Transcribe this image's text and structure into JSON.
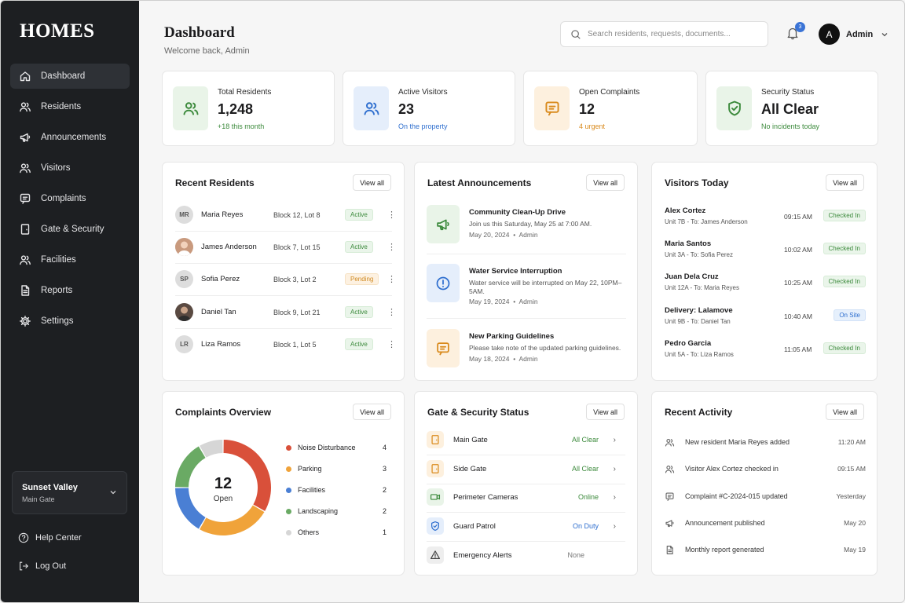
{
  "brand": "HOMES",
  "nav": [
    {
      "label": "Dashboard",
      "icon": "home-icon",
      "active": true
    },
    {
      "label": "Residents",
      "icon": "users-icon"
    },
    {
      "label": "Announcements",
      "icon": "megaphone-icon"
    },
    {
      "label": "Visitors",
      "icon": "users-icon"
    },
    {
      "label": "Complaints",
      "icon": "message-square-icon"
    },
    {
      "label": "Gate & Security",
      "icon": "door-icon"
    },
    {
      "label": "Facilities",
      "icon": "users-icon"
    },
    {
      "label": "Reports",
      "icon": "file-text-icon"
    },
    {
      "label": "Settings",
      "icon": "gear-icon"
    }
  ],
  "community": {
    "name": "Sunset Valley",
    "sub": "Main Gate"
  },
  "sidebar_footer": {
    "help": "Help Center",
    "logout": "Log Out"
  },
  "header": {
    "title": "Dashboard",
    "subtitle": "Welcome back, Admin",
    "search_placeholder": "Search residents, requests, documents...",
    "notifications": "3",
    "avatar_letter": "A",
    "user": "Admin"
  },
  "stats": [
    {
      "label": "Total Residents",
      "value": "1,248",
      "note": "+18 this month",
      "icon": "users-icon",
      "color": "#3c8a3c"
    },
    {
      "label": "Active Visitors",
      "value": "23",
      "note": "On the property",
      "icon": "users-icon",
      "color": "#2f6fcf"
    },
    {
      "label": "Open Complaints",
      "value": "12",
      "note": "4 urgent",
      "icon": "message-square-icon",
      "color": "#d98a1c"
    },
    {
      "label": "Security Status",
      "value": "All Clear",
      "note": "No incidents today",
      "icon": "shield-check-icon",
      "color": "#3c8a3c"
    }
  ],
  "view_all": "View all",
  "recent_residents": {
    "title": "Recent Residents",
    "rows": [
      {
        "initials": "MR",
        "name": "Maria Reyes",
        "block": "Block 12, Lot 8",
        "status": "Active"
      },
      {
        "initials": "",
        "name": "James Anderson",
        "block": "Block 7, Lot 15",
        "status": "Active"
      },
      {
        "initials": "SP",
        "name": "Sofia Perez",
        "block": "Block 3, Lot 2",
        "status": "Pending"
      },
      {
        "initials": "",
        "name": "Daniel Tan",
        "block": "Block 9, Lot 21",
        "status": "Active"
      },
      {
        "initials": "LR",
        "name": "Liza Ramos",
        "block": "Block 1, Lot 5",
        "status": "Active"
      }
    ]
  },
  "announcements": {
    "title": "Latest Announcements",
    "items": [
      {
        "title": "Community Clean-Up Drive",
        "desc": "Join us this Saturday, May 25 at 7:00 AM.",
        "date": "May 20, 2024",
        "by": "Admin",
        "icon": "megaphone-icon"
      },
      {
        "title": "Water Service Interruption",
        "desc": "Water service will be interrupted on May 22, 10PM–5AM.",
        "date": "May 19, 2024",
        "by": "Admin",
        "icon": "alert-circle-icon"
      },
      {
        "title": "New Parking Guidelines",
        "desc": "Please take note of the updated parking guidelines.",
        "date": "May 18, 2024",
        "by": "Admin",
        "icon": "message-square-icon"
      }
    ]
  },
  "visitors": {
    "title": "Visitors Today",
    "items": [
      {
        "name": "Alex Cortez",
        "unit": "Unit 7B - To: James Anderson",
        "time": "09:15 AM",
        "status": "Checked In"
      },
      {
        "name": "Maria Santos",
        "unit": "Unit 3A - To: Sofia Perez",
        "time": "10:02 AM",
        "status": "Checked In"
      },
      {
        "name": "Juan Dela Cruz",
        "unit": "Unit 12A - To: Maria Reyes",
        "time": "10:25 AM",
        "status": "Checked In"
      },
      {
        "name": "Delivery: Lalamove",
        "unit": "Unit 9B - To: Daniel Tan",
        "time": "10:40 AM",
        "status": "On Site"
      },
      {
        "name": "Pedro Garcia",
        "unit": "Unit 5A - To: Liza Ramos",
        "time": "11:05 AM",
        "status": "Checked In"
      }
    ]
  },
  "complaints": {
    "title": "Complaints Overview",
    "total": "12",
    "total_label": "Open",
    "categories": [
      {
        "name": "Noise Disturbance",
        "count": 4,
        "color": "#d9503a"
      },
      {
        "name": "Parking",
        "count": 3,
        "color": "#f0a33a"
      },
      {
        "name": "Facilities",
        "count": 2,
        "color": "#4a7fd4"
      },
      {
        "name": "Landscaping",
        "count": 2,
        "color": "#6aaa64"
      },
      {
        "name": "Others",
        "count": 1,
        "color": "#d6d6d6"
      }
    ]
  },
  "gate_security": {
    "title": "Gate & Security Status",
    "items": [
      {
        "name": "Main Gate",
        "status": "All Clear",
        "color": "#3c8a3c",
        "icon": "door-icon"
      },
      {
        "name": "Side Gate",
        "status": "All Clear",
        "color": "#3c8a3c",
        "icon": "door-icon"
      },
      {
        "name": "Perimeter Cameras",
        "status": "Online",
        "color": "#3c8a3c",
        "icon": "camera-icon"
      },
      {
        "name": "Guard Patrol",
        "status": "On Duty",
        "color": "#2f6fcf",
        "icon": "shield-check-icon"
      },
      {
        "name": "Emergency Alerts",
        "status": "None",
        "color": "#777777",
        "icon": "alert-triangle-icon"
      }
    ]
  },
  "activity": {
    "title": "Recent Activity",
    "items": [
      {
        "text": "New resident Maria Reyes added",
        "time": "11:20 AM",
        "icon": "users-icon"
      },
      {
        "text": "Visitor Alex Cortez checked in",
        "time": "09:15 AM",
        "icon": "users-icon"
      },
      {
        "text": "Complaint #C-2024-015 updated",
        "time": "Yesterday",
        "icon": "message-square-icon"
      },
      {
        "text": "Announcement published",
        "time": "May 20",
        "icon": "megaphone-icon"
      },
      {
        "text": "Monthly report generated",
        "time": "May 19",
        "icon": "file-text-icon"
      }
    ]
  },
  "chart_data": {
    "type": "pie",
    "categories": [
      "Noise Disturbance",
      "Parking",
      "Facilities",
      "Landscaping",
      "Others"
    ],
    "values": [
      4,
      3,
      2,
      2,
      1
    ],
    "title": "Complaints Overview"
  }
}
